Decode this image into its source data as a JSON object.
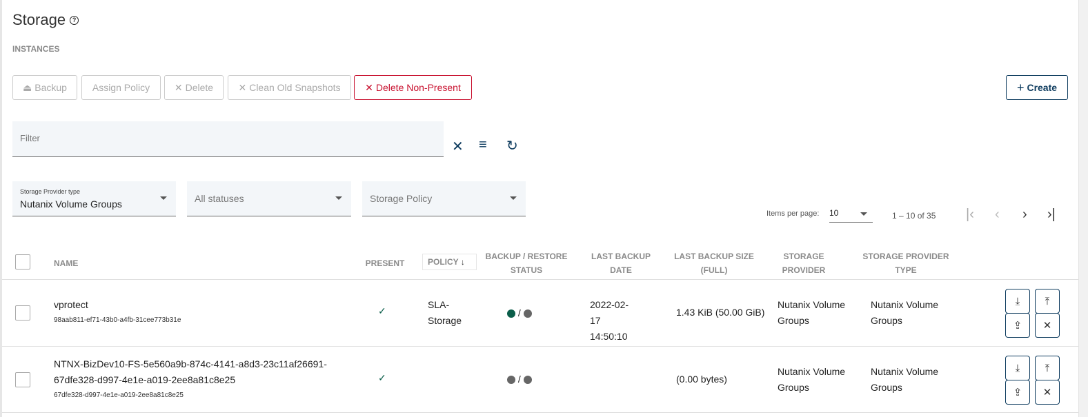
{
  "header": {
    "title": "Storage",
    "help_icon": "help-circle-icon",
    "section": "INSTANCES"
  },
  "toolbar": {
    "backup": "Backup",
    "assign_policy": "Assign Policy",
    "delete": "Delete",
    "clean_old_snapshots": "Clean Old Snapshots",
    "delete_non_present": "Delete Non-Present",
    "create": "Create"
  },
  "filter": {
    "placeholder": "Filter"
  },
  "dropdowns": {
    "provider_type_label": "Storage Provider type",
    "provider_type_value": "Nutanix Volume Groups",
    "status_value": "All statuses",
    "policy_placeholder": "Storage Policy"
  },
  "paginator": {
    "items_per_page_label": "Items per page:",
    "items_per_page": "10",
    "range": "1 – 10 of 35"
  },
  "table": {
    "columns": [
      "NAME",
      "PRESENT",
      "POLICY",
      "BACKUP / RESTORE STATUS",
      "LAST BACKUP DATE",
      "LAST BACKUP SIZE (FULL)",
      "STORAGE PROVIDER",
      "STORAGE PROVIDER TYPE"
    ],
    "rows": [
      {
        "name": "vprotect",
        "id": "98aab811-ef71-43b0-a4fb-31cee773b31e",
        "present": "✓",
        "policy": "SLA-Storage",
        "backup_status": "success",
        "restore_status": "none",
        "status_sep": "/",
        "date": "2022-02-17 14:50:10",
        "size": "1.43 KiB (50.00 GiB)",
        "provider": "Nutanix Volume Groups",
        "provider_type": "Nutanix Volume Groups"
      },
      {
        "name": "NTNX-BizDev10-FS-5e560a9b-874c-4141-a8d3-23c11af26691-67dfe328-d997-4e1e-a019-2ee8a81c8e25",
        "id": "67dfe328-d997-4e1e-a019-2ee8a81c8e25",
        "present": "✓",
        "policy": "",
        "backup_status": "none",
        "restore_status": "none",
        "status_sep": "/",
        "date": "",
        "size": "(0.00 bytes)",
        "provider": "Nutanix Volume Groups",
        "provider_type": "Nutanix Volume Groups"
      }
    ]
  },
  "colors": {
    "success": "#0b5e4a",
    "none": "#666666",
    "danger": "#c8102e",
    "primary": "#0d3b5e"
  }
}
